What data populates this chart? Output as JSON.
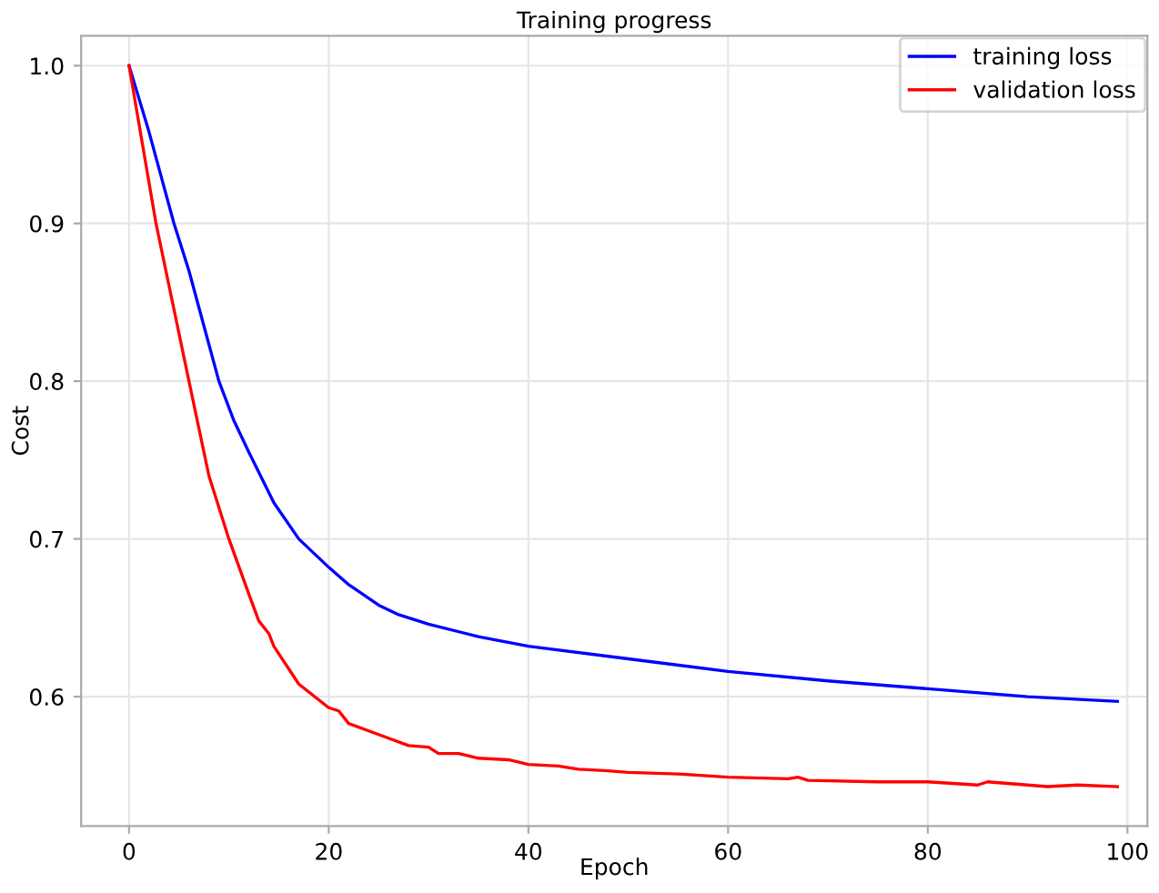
{
  "chart_data": {
    "type": "line",
    "title": "Training progress",
    "xlabel": "Epoch",
    "ylabel": "Cost",
    "xlim": [
      -4.8,
      102
    ],
    "ylim": [
      0.518,
      1.019
    ],
    "xticks": [
      0,
      20,
      40,
      60,
      80,
      100
    ],
    "yticks": [
      0.6,
      0.7,
      0.8,
      0.9,
      {
        "value": 1.0,
        "label": "1.0"
      }
    ],
    "grid": true,
    "legend": "top right",
    "line_style": "solid",
    "marker": "none",
    "series": [
      {
        "name": "training loss",
        "color": "#0000ff",
        "x": [
          0,
          2,
          4.5,
          6,
          7.5,
          9,
          10.5,
          12,
          14.5,
          17,
          20,
          22,
          25,
          27,
          30,
          35,
          40,
          50,
          60,
          70,
          80,
          90,
          99
        ],
        "values": [
          1.0,
          0.958,
          0.9,
          0.87,
          0.835,
          0.8,
          0.775,
          0.755,
          0.723,
          0.7,
          0.682,
          0.671,
          0.658,
          0.652,
          0.646,
          0.638,
          0.632,
          0.624,
          0.616,
          0.61,
          0.605,
          0.6,
          0.597
        ]
      },
      {
        "name": "validation loss",
        "color": "#ff0000",
        "x": [
          0,
          2.7,
          6,
          8,
          10,
          12,
          13,
          14,
          14.5,
          17,
          20,
          21,
          22,
          25,
          28,
          30,
          31,
          33,
          35,
          38,
          40,
          43,
          45,
          48,
          50,
          55,
          60,
          66,
          67,
          68,
          75,
          80,
          85,
          86,
          92,
          95,
          99
        ],
        "values": [
          1.0,
          0.9,
          0.8,
          0.74,
          0.7,
          0.665,
          0.648,
          0.64,
          0.632,
          0.608,
          0.593,
          0.591,
          0.583,
          0.576,
          0.569,
          0.568,
          0.564,
          0.564,
          0.561,
          0.56,
          0.557,
          0.556,
          0.554,
          0.553,
          0.552,
          0.551,
          0.549,
          0.548,
          0.549,
          0.547,
          0.546,
          0.546,
          0.544,
          0.546,
          0.543,
          0.544,
          0.543
        ]
      }
    ]
  }
}
